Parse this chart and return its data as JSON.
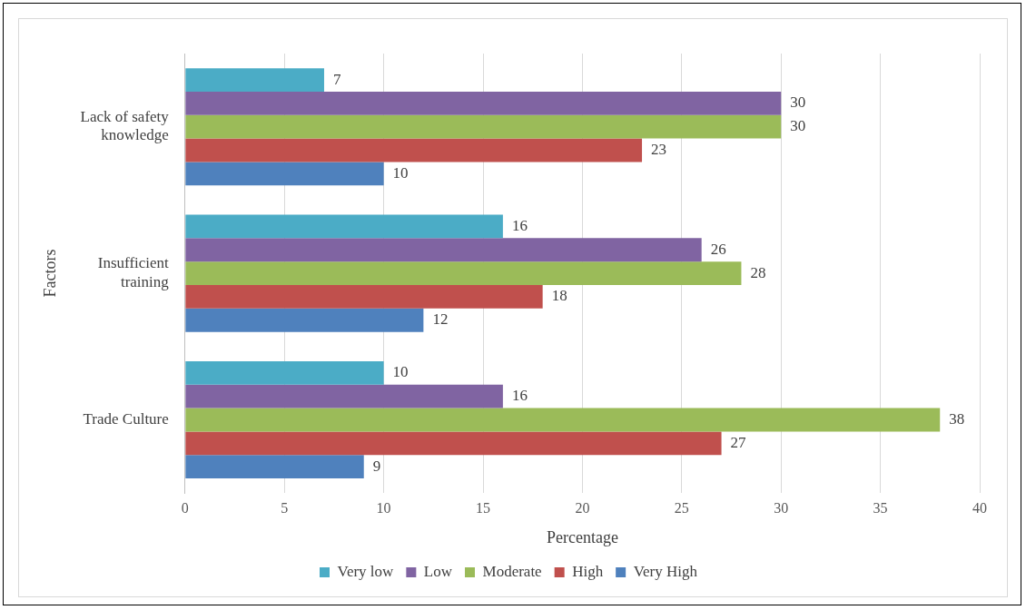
{
  "chart_data": {
    "type": "bar",
    "orientation": "horizontal",
    "xlabel": "Percentage",
    "ylabel": "Factors",
    "categories": [
      "Lack of safety knowledge",
      "Insufficient training",
      "Trade Culture"
    ],
    "series": [
      {
        "name": "Very low",
        "color": "#4bacc6",
        "values": [
          7,
          16,
          10
        ]
      },
      {
        "name": "Low",
        "color": "#8064a2",
        "values": [
          30,
          26,
          16
        ]
      },
      {
        "name": "Moderate",
        "color": "#9bbb59",
        "values": [
          30,
          28,
          38
        ]
      },
      {
        "name": "High",
        "color": "#c0504d",
        "values": [
          23,
          18,
          27
        ]
      },
      {
        "name": "Very High",
        "color": "#4f81bd",
        "values": [
          10,
          12,
          9
        ]
      }
    ],
    "xlim": [
      0,
      40
    ],
    "xticks": [
      0,
      5,
      10,
      15,
      20,
      25,
      30,
      35,
      40
    ],
    "grid": "x",
    "legend": "bottom",
    "data_labels": true
  }
}
